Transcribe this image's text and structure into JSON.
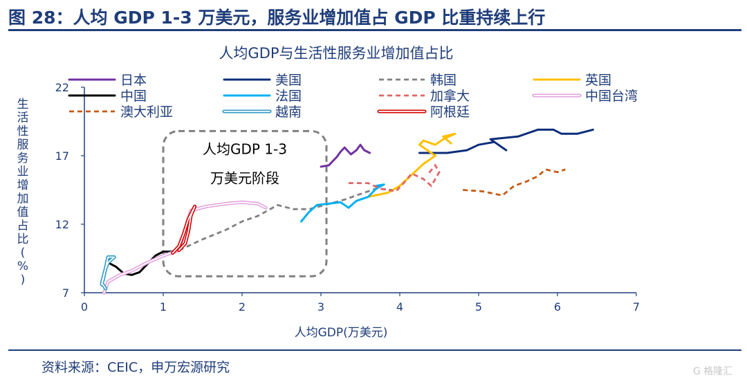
{
  "figure_title": "图 28：人均 GDP 1-3 万美元，服务业增加值占 GDP 比重持续上行",
  "source": "资料来源：CEIC，申万宏源研究",
  "watermark": "G 格隆汇",
  "colors": {
    "title": "#1f3d7a",
    "axis": "#1f3d7a"
  },
  "chart_data": {
    "type": "line",
    "title": "人均GDP与生活性服务业增加值占比",
    "xlabel": "人均GDP(万美元)",
    "ylabel": "生活性服务业增加值占比(%)",
    "xlim": [
      0,
      7
    ],
    "ylim": [
      7,
      22
    ],
    "xticks": [
      0,
      1,
      2,
      3,
      4,
      5,
      6,
      7
    ],
    "yticks": [
      7,
      12,
      17,
      22
    ],
    "grid": false,
    "legend_position": "top",
    "annotation": {
      "lines": [
        "人均GDP 1-3",
        "万美元阶段"
      ],
      "x_range": [
        1.0,
        3.0
      ],
      "y_range": [
        8.2,
        18.8
      ]
    },
    "series": [
      {
        "name": "日本",
        "color": "#7030a0",
        "style": "solid",
        "points": [
          [
            3.0,
            16.2
          ],
          [
            3.1,
            16.3
          ],
          [
            3.15,
            16.6
          ],
          [
            3.2,
            16.9
          ],
          [
            3.25,
            17.3
          ],
          [
            3.3,
            17.6
          ],
          [
            3.38,
            17.1
          ],
          [
            3.45,
            17.4
          ],
          [
            3.5,
            17.8
          ],
          [
            3.55,
            17.4
          ],
          [
            3.62,
            17.2
          ]
        ]
      },
      {
        "name": "美国",
        "color": "#0b2d7a",
        "style": "solid",
        "points": [
          [
            4.25,
            17.2
          ],
          [
            4.6,
            17.2
          ],
          [
            4.85,
            17.4
          ],
          [
            5.0,
            17.8
          ],
          [
            5.2,
            18.0
          ],
          [
            5.35,
            17.4
          ],
          [
            5.15,
            18.2
          ],
          [
            5.5,
            18.4
          ],
          [
            5.75,
            18.9
          ],
          [
            5.95,
            18.9
          ],
          [
            6.05,
            18.6
          ],
          [
            6.25,
            18.6
          ],
          [
            6.45,
            18.9
          ]
        ]
      },
      {
        "name": "韩国",
        "color": "#808080",
        "style": "dash",
        "points": [
          [
            1.2,
            10.1
          ],
          [
            1.5,
            10.9
          ],
          [
            1.8,
            11.6
          ],
          [
            2.0,
            12.2
          ],
          [
            2.2,
            12.6
          ],
          [
            2.45,
            13.4
          ],
          [
            2.65,
            13.1
          ],
          [
            2.85,
            13.1
          ],
          [
            3.05,
            13.4
          ],
          [
            3.3,
            13.8
          ],
          [
            3.5,
            14.2
          ],
          [
            3.7,
            14.6
          ],
          [
            3.9,
            14.5
          ]
        ]
      },
      {
        "name": "英国",
        "color": "#ffc000",
        "style": "solid",
        "points": [
          [
            3.6,
            14.0
          ],
          [
            3.85,
            14.3
          ],
          [
            4.0,
            14.8
          ],
          [
            4.15,
            15.6
          ],
          [
            4.3,
            16.4
          ],
          [
            4.45,
            17.0
          ],
          [
            4.35,
            17.4
          ],
          [
            4.25,
            17.8
          ],
          [
            4.3,
            18.1
          ],
          [
            4.45,
            17.8
          ],
          [
            4.55,
            18.2
          ],
          [
            4.7,
            18.6
          ],
          [
            4.55,
            18.4
          ],
          [
            4.65,
            17.9
          ]
        ]
      },
      {
        "name": "中国",
        "color": "#000000",
        "style": "solid",
        "points": [
          [
            0.3,
            9.2
          ],
          [
            0.4,
            8.9
          ],
          [
            0.5,
            8.4
          ],
          [
            0.6,
            8.3
          ],
          [
            0.7,
            8.5
          ],
          [
            0.8,
            9.1
          ],
          [
            0.9,
            9.7
          ],
          [
            1.0,
            10.0
          ],
          [
            1.1,
            10.0
          ],
          [
            1.2,
            10.1
          ]
        ]
      },
      {
        "name": "法国",
        "color": "#00b0f0",
        "style": "solid",
        "points": [
          [
            2.75,
            12.2
          ],
          [
            2.85,
            12.9
          ],
          [
            2.95,
            13.4
          ],
          [
            3.1,
            13.5
          ],
          [
            3.25,
            13.6
          ],
          [
            3.35,
            13.2
          ],
          [
            3.45,
            13.7
          ],
          [
            3.6,
            14.0
          ],
          [
            3.7,
            14.6
          ],
          [
            3.8,
            14.9
          ],
          [
            3.7,
            14.8
          ]
        ]
      },
      {
        "name": "加拿大",
        "color": "#e06666",
        "style": "dash",
        "points": [
          [
            3.35,
            15.0
          ],
          [
            3.6,
            15.0
          ],
          [
            3.75,
            14.6
          ],
          [
            3.95,
            14.4
          ],
          [
            4.05,
            15.0
          ],
          [
            4.15,
            15.7
          ],
          [
            4.3,
            15.3
          ],
          [
            4.4,
            14.8
          ],
          [
            4.5,
            15.8
          ],
          [
            4.45,
            16.3
          ],
          [
            4.35,
            15.6
          ]
        ]
      },
      {
        "name": "中国台湾",
        "color": "#e2a2df",
        "style": "double",
        "points": [
          [
            0.25,
            7.0
          ],
          [
            0.3,
            7.8
          ],
          [
            0.45,
            8.3
          ],
          [
            0.6,
            8.6
          ],
          [
            0.8,
            9.2
          ],
          [
            1.0,
            9.7
          ],
          [
            1.2,
            10.1
          ],
          [
            1.35,
            13.0
          ],
          [
            1.55,
            13.3
          ],
          [
            1.8,
            13.5
          ],
          [
            2.0,
            13.6
          ],
          [
            2.2,
            13.5
          ],
          [
            2.3,
            13.2
          ]
        ]
      },
      {
        "name": "澳大利亚",
        "color": "#c55a11",
        "style": "dash",
        "points": [
          [
            4.8,
            14.5
          ],
          [
            5.05,
            14.4
          ],
          [
            5.3,
            14.1
          ],
          [
            5.45,
            14.8
          ],
          [
            5.6,
            15.1
          ],
          [
            5.75,
            15.5
          ],
          [
            5.85,
            16.0
          ],
          [
            6.0,
            15.8
          ],
          [
            6.1,
            16.0
          ]
        ]
      },
      {
        "name": "越南",
        "color": "#2e9ac7",
        "style": "double",
        "points": [
          [
            0.22,
            7.6
          ],
          [
            0.24,
            8.0
          ],
          [
            0.28,
            9.1
          ],
          [
            0.3,
            9.6
          ],
          [
            0.38,
            9.6
          ],
          [
            0.3,
            9.2
          ],
          [
            0.26,
            8.6
          ],
          [
            0.22,
            7.7
          ],
          [
            0.27,
            7.3
          ]
        ]
      },
      {
        "name": "阿根廷",
        "color": "#d40000",
        "style": "double",
        "points": [
          [
            1.12,
            9.9
          ],
          [
            1.2,
            10.4
          ],
          [
            1.26,
            11.3
          ],
          [
            1.32,
            12.4
          ],
          [
            1.4,
            13.3
          ],
          [
            1.35,
            12.6
          ],
          [
            1.32,
            11.5
          ],
          [
            1.28,
            10.6
          ],
          [
            1.2,
            10.1
          ]
        ]
      }
    ]
  }
}
